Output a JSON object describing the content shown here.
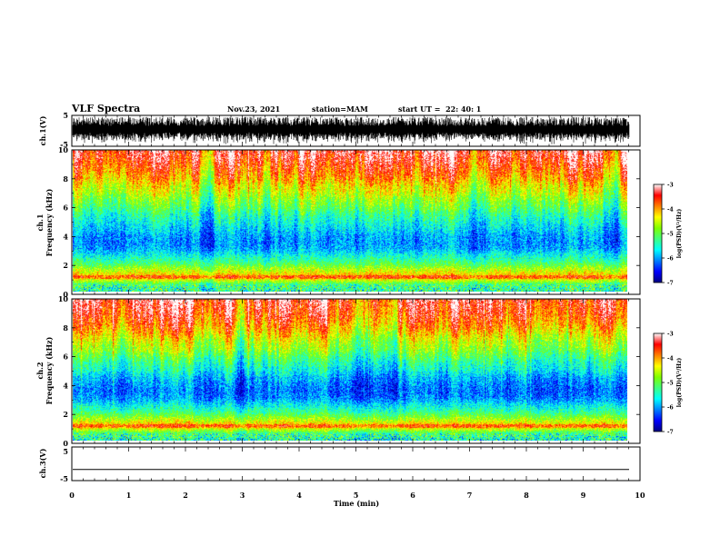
{
  "header": {
    "title": "VLF Spectra",
    "date": "Nov.23, 2021",
    "station": "station=MAM",
    "start": "start UT =  22: 40: 1"
  },
  "chart_data": [
    {
      "type": "line",
      "panel": "ch1-waveform",
      "ylabel": "ch.1(V)",
      "ytick_labels": [
        "5",
        "-5"
      ],
      "ylim": [
        -5,
        5
      ],
      "xlim": [
        0,
        10
      ],
      "description_values": {
        "envelope_min": -4.5,
        "envelope_max": 4.5
      }
    },
    {
      "type": "heatmap",
      "panel": "ch1-spectrogram",
      "ylabel_line1": "ch.1",
      "ylabel_line2": "Frequency (kHz)",
      "ytick_labels": [
        "0",
        "2",
        "4",
        "6",
        "8",
        "10"
      ],
      "ylim": [
        0,
        10
      ],
      "xlim": [
        0,
        9.8
      ],
      "colorbar": {
        "label": "log(PSD)(V²/Hz)",
        "tick_labels": [
          "-3",
          "-4",
          "-5",
          "-6",
          "-7"
        ],
        "range": [
          -7,
          -3
        ],
        "colormap": [
          "#000080",
          "#0000ff",
          "#0080ff",
          "#00ffff",
          "#40ff80",
          "#80ff00",
          "#ffff00",
          "#ff8000",
          "#ff0000",
          "#ffffff"
        ]
      },
      "profile_freq_khz": [
        0,
        0.5,
        1,
        1.5,
        2,
        2.5,
        3,
        3.5,
        4,
        4.5,
        5,
        5.5,
        6,
        6.5,
        7,
        7.5,
        8,
        8.5,
        9,
        9.5,
        10
      ],
      "profile_log_psd": [
        -5.4,
        -5.2,
        -4.0,
        -4.6,
        -5.2,
        -5.6,
        -6.0,
        -6.1,
        -6.0,
        -5.8,
        -5.6,
        -5.4,
        -5.1,
        -4.9,
        -4.6,
        -4.4,
        -4.1,
        -3.9,
        -3.7,
        -3.5,
        -3.4
      ]
    },
    {
      "type": "heatmap",
      "panel": "ch2-spectrogram",
      "ylabel_line1": "ch.2",
      "ylabel_line2": "Frequency (kHz)",
      "ytick_labels": [
        "0",
        "2",
        "4",
        "6",
        "8",
        "10"
      ],
      "ylim": [
        0,
        10
      ],
      "xlim": [
        0,
        9.8
      ],
      "colorbar": {
        "label": "log(PSD)(V²/Hz)",
        "tick_labels": [
          "-3",
          "-4",
          "-5",
          "-6",
          "-7"
        ],
        "range": [
          -7,
          -3
        ]
      },
      "profile_freq_khz": [
        0,
        0.5,
        1,
        1.5,
        2,
        2.5,
        3,
        3.5,
        4,
        4.5,
        5,
        5.5,
        6,
        6.5,
        7,
        7.5,
        8,
        8.5,
        9,
        9.5,
        10
      ],
      "profile_log_psd": [
        -5.5,
        -5.2,
        -4.0,
        -4.7,
        -5.3,
        -5.7,
        -6.1,
        -6.2,
        -6.1,
        -5.9,
        -5.6,
        -5.4,
        -5.1,
        -4.8,
        -4.6,
        -4.3,
        -4.0,
        -3.8,
        -3.6,
        -3.5,
        -3.4
      ]
    },
    {
      "type": "line",
      "panel": "ch3-waveform",
      "ylabel": "ch.3(V)",
      "ytick_labels": [
        "5",
        "-5"
      ],
      "ylim": [
        -5,
        5
      ],
      "xlim": [
        0,
        10
      ],
      "x": [
        0,
        9.8
      ],
      "y": [
        -1.7,
        -1.7
      ]
    }
  ],
  "xaxis": {
    "label": "Time (min)",
    "tick_labels": [
      "0",
      "1",
      "2",
      "3",
      "4",
      "5",
      "6",
      "7",
      "8",
      "9",
      "10"
    ],
    "xlim": [
      0,
      10
    ]
  }
}
